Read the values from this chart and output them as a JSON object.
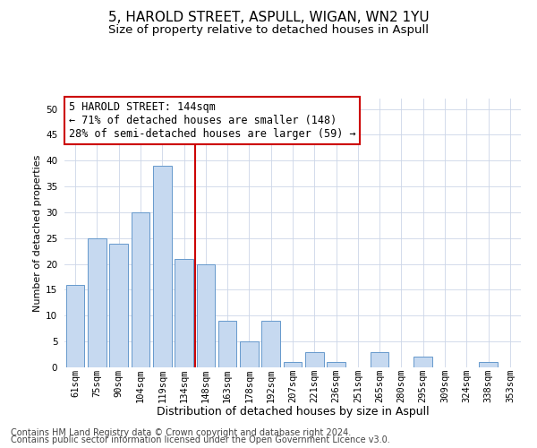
{
  "title1": "5, HAROLD STREET, ASPULL, WIGAN, WN2 1YU",
  "title2": "Size of property relative to detached houses in Aspull",
  "xlabel": "Distribution of detached houses by size in Aspull",
  "ylabel": "Number of detached properties",
  "categories": [
    "61sqm",
    "75sqm",
    "90sqm",
    "104sqm",
    "119sqm",
    "134sqm",
    "148sqm",
    "163sqm",
    "178sqm",
    "192sqm",
    "207sqm",
    "221sqm",
    "236sqm",
    "251sqm",
    "265sqm",
    "280sqm",
    "295sqm",
    "309sqm",
    "324sqm",
    "338sqm",
    "353sqm"
  ],
  "values": [
    16,
    25,
    24,
    30,
    39,
    21,
    20,
    9,
    5,
    9,
    1,
    3,
    1,
    0,
    3,
    0,
    2,
    0,
    0,
    1,
    0
  ],
  "bar_color": "#c6d9f0",
  "bar_edge_color": "#6699cc",
  "vline_color": "#cc0000",
  "vline_x_index": 6,
  "annotation_text": "5 HAROLD STREET: 144sqm\n← 71% of detached houses are smaller (148)\n28% of semi-detached houses are larger (59) →",
  "annotation_box_color": "#ffffff",
  "annotation_box_edge_color": "#cc0000",
  "ylim": [
    0,
    52
  ],
  "yticks": [
    0,
    5,
    10,
    15,
    20,
    25,
    30,
    35,
    40,
    45,
    50
  ],
  "footer1": "Contains HM Land Registry data © Crown copyright and database right 2024.",
  "footer2": "Contains public sector information licensed under the Open Government Licence v3.0.",
  "bg_color": "#ffffff",
  "grid_color": "#ccd6e8",
  "title1_fontsize": 11,
  "title2_fontsize": 9.5,
  "xlabel_fontsize": 9,
  "ylabel_fontsize": 8,
  "tick_fontsize": 7.5,
  "annotation_fontsize": 8.5,
  "footer_fontsize": 7
}
